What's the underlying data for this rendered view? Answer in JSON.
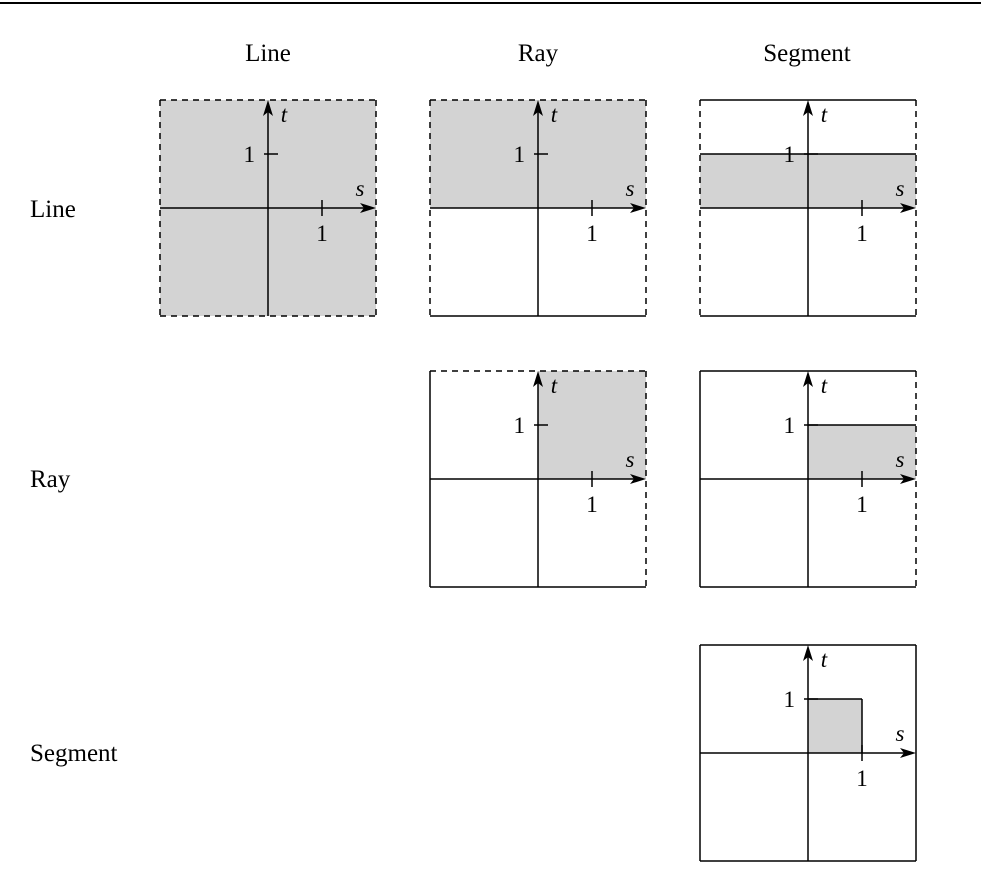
{
  "columns": [
    "Line",
    "Ray",
    "Segment"
  ],
  "rows": [
    "Line",
    "Ray",
    "Segment"
  ],
  "axes": {
    "horizontal": "s",
    "vertical": "t",
    "tick": "1"
  },
  "colors": {
    "fill": "#d3d3d3",
    "stroke": "#000000"
  },
  "panels": [
    {
      "row": 0,
      "col": 0,
      "region": {
        "s": [
          null,
          null
        ],
        "t": [
          null,
          null
        ]
      },
      "edges": {
        "top": "dashed",
        "right": "dashed",
        "bottom": "dashed",
        "left": "dashed"
      }
    },
    {
      "row": 0,
      "col": 1,
      "region": {
        "s": [
          null,
          null
        ],
        "t": [
          0,
          null
        ]
      },
      "edges": {
        "top": "dashed",
        "right": "dashed",
        "bottom": "solid",
        "left": "dashed"
      }
    },
    {
      "row": 0,
      "col": 2,
      "region": {
        "s": [
          null,
          null
        ],
        "t": [
          0,
          1
        ]
      },
      "edges": {
        "top": "solid",
        "right": "dashed",
        "bottom": "solid",
        "left": "dashed"
      }
    },
    {
      "row": 1,
      "col": 1,
      "region": {
        "s": [
          0,
          null
        ],
        "t": [
          0,
          null
        ]
      },
      "edges": {
        "top": "dashed",
        "right": "dashed",
        "bottom": "solid",
        "left": "solid"
      }
    },
    {
      "row": 1,
      "col": 2,
      "region": {
        "s": [
          0,
          null
        ],
        "t": [
          0,
          1
        ]
      },
      "edges": {
        "top": "solid",
        "right": "dashed",
        "bottom": "solid",
        "left": "solid"
      }
    },
    {
      "row": 2,
      "col": 2,
      "region": {
        "s": [
          0,
          1
        ],
        "t": [
          0,
          1
        ]
      },
      "edges": {
        "top": "solid",
        "right": "solid",
        "bottom": "solid",
        "left": "solid"
      }
    }
  ]
}
